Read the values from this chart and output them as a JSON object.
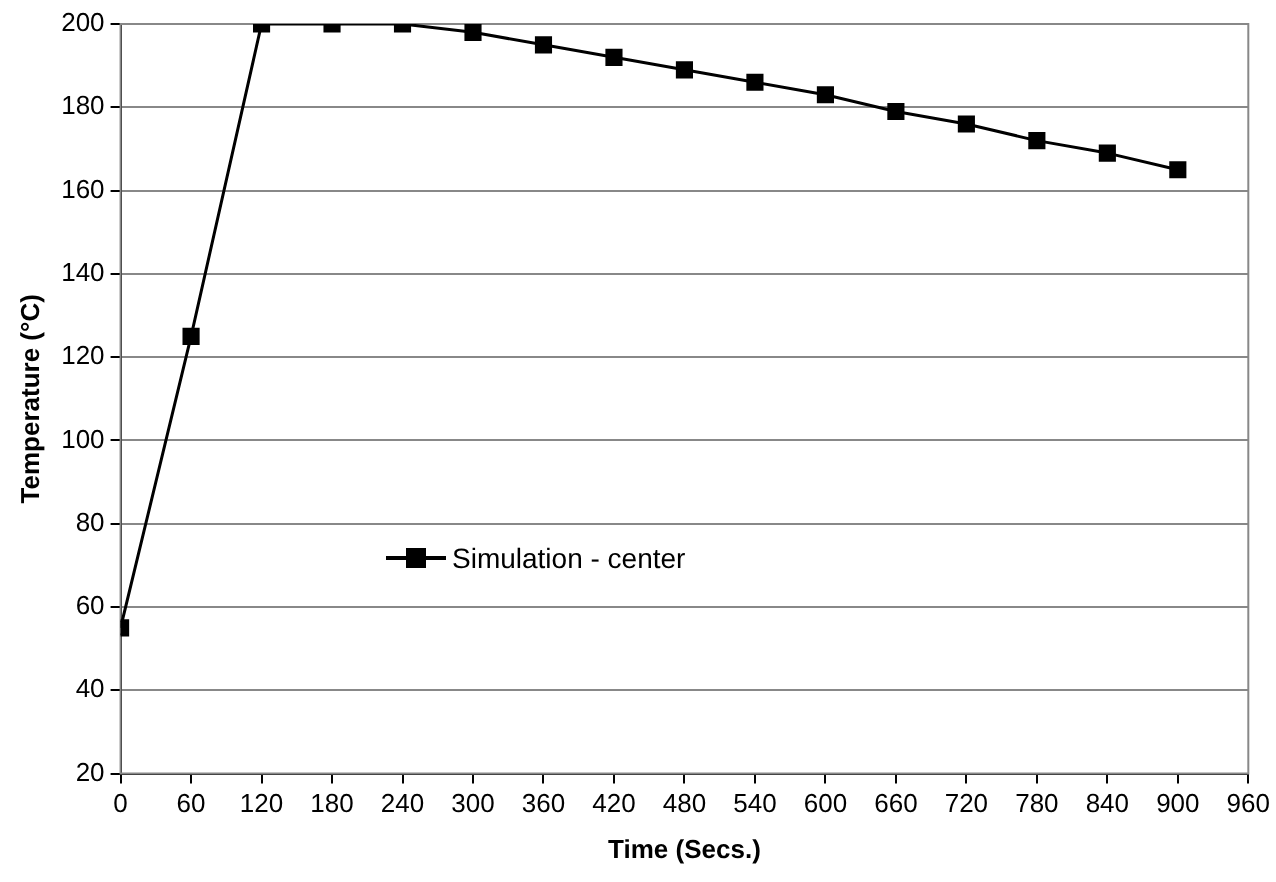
{
  "chart_data": {
    "type": "line",
    "xlabel": "Time (Secs.)",
    "ylabel": "Temperature (°C)",
    "x": [
      0,
      60,
      120,
      180,
      240,
      300,
      360,
      420,
      480,
      540,
      600,
      660,
      720,
      780,
      840,
      900
    ],
    "series": [
      {
        "name": "Simulation - center",
        "color": "#000000",
        "values": [
          55,
          125,
          200,
          200,
          200,
          198,
          195,
          192,
          189,
          186,
          183,
          179,
          176,
          172,
          169,
          165
        ]
      }
    ],
    "xlim": [
      0,
      960
    ],
    "xticks": [
      0,
      60,
      120,
      180,
      240,
      300,
      360,
      420,
      480,
      540,
      600,
      660,
      720,
      780,
      840,
      900,
      960
    ],
    "ylim": [
      20,
      200
    ],
    "yticks": [
      20,
      40,
      60,
      80,
      100,
      120,
      140,
      160,
      180,
      200
    ],
    "grid": "y",
    "legend": "left",
    "marker": "square",
    "line_style": "solid"
  }
}
